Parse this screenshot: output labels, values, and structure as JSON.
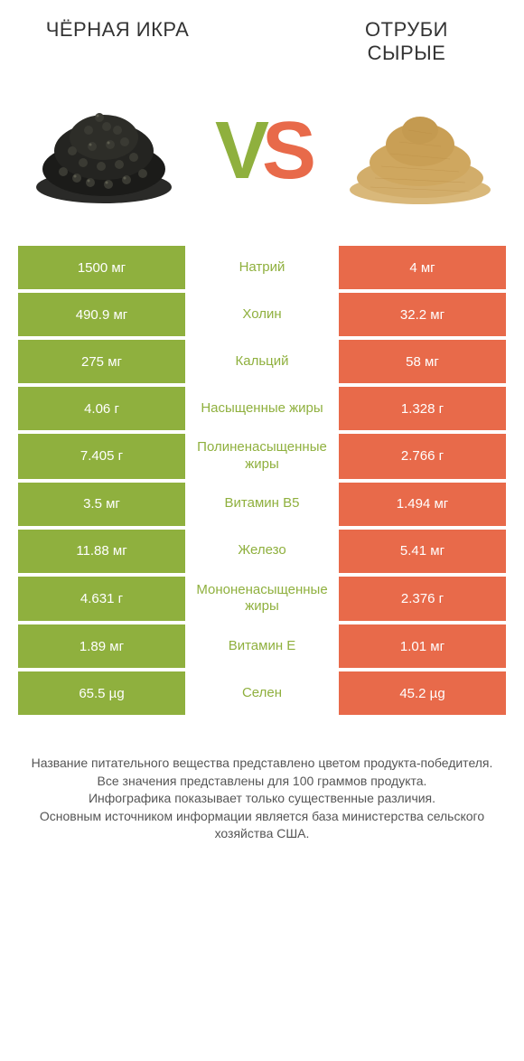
{
  "colors": {
    "left_bar": "#8fb03e",
    "right_bar": "#e86a4a",
    "left_label": "#8fb03e",
    "right_label": "#e86a4a",
    "row_gap": 4
  },
  "header": {
    "left_title": "ЧЁРНАЯ ИКРА",
    "right_title": "ОТРУБИ СЫРЫЕ",
    "vs_v": "V",
    "vs_s": "S"
  },
  "rows": [
    {
      "left": "1500 мг",
      "label": "Натрий",
      "right": "4 мг",
      "winner": "left"
    },
    {
      "left": "490.9 мг",
      "label": "Холин",
      "right": "32.2 мг",
      "winner": "left"
    },
    {
      "left": "275 мг",
      "label": "Кальций",
      "right": "58 мг",
      "winner": "left"
    },
    {
      "left": "4.06 г",
      "label": "Насыщенные жиры",
      "right": "1.328 г",
      "winner": "left"
    },
    {
      "left": "7.405 г",
      "label": "Полиненасыщенные жиры",
      "right": "2.766 г",
      "winner": "left"
    },
    {
      "left": "3.5 мг",
      "label": "Витамин B5",
      "right": "1.494 мг",
      "winner": "left"
    },
    {
      "left": "11.88 мг",
      "label": "Железо",
      "right": "5.41 мг",
      "winner": "left"
    },
    {
      "left": "4.631 г",
      "label": "Мононенасыщенные жиры",
      "right": "2.376 г",
      "winner": "left"
    },
    {
      "left": "1.89 мг",
      "label": "Витамин E",
      "right": "1.01 мг",
      "winner": "left"
    },
    {
      "left": "65.5 µg",
      "label": "Селен",
      "right": "45.2 µg",
      "winner": "left"
    }
  ],
  "footer": {
    "line1": "Название питательного вещества представлено цветом продукта-победителя.",
    "line2": "Все значения представлены для 100 граммов продукта.",
    "line3": "Инфографика показывает только существенные различия.",
    "line4": "Основным источником информации является база министерства сельского хозяйства США."
  }
}
